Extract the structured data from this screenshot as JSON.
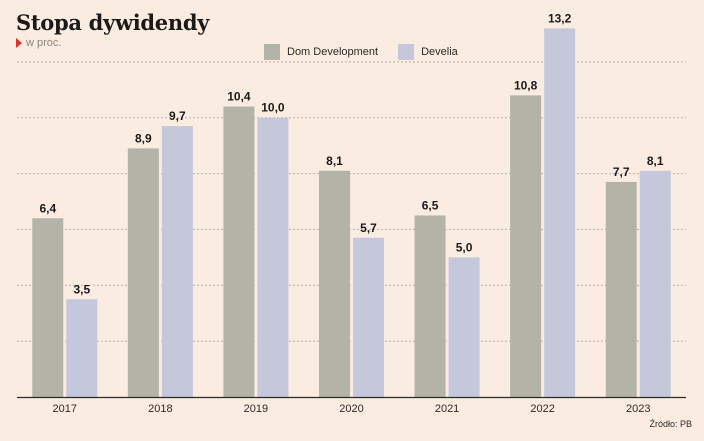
{
  "title": "Stopa dywidendy",
  "subtitle": "w proc.",
  "source": "Źródło: PB",
  "chart_data": {
    "type": "bar",
    "categories": [
      "2017",
      "2018",
      "2019",
      "2020",
      "2021",
      "2022",
      "2023"
    ],
    "series": [
      {
        "name": "Dom Development",
        "color": "#b3b3a7",
        "values": [
          6.4,
          8.9,
          10.4,
          8.1,
          6.5,
          10.8,
          7.7
        ]
      },
      {
        "name": "Develia",
        "color": "#c4c8da",
        "values": [
          3.5,
          9.7,
          10.0,
          5.7,
          5.0,
          13.2,
          8.1
        ]
      }
    ],
    "data_labels": {
      "Dom Development": [
        "6,4",
        "8,9",
        "10,4",
        "8,1",
        "6,5",
        "10,8",
        "7,7"
      ],
      "Develia": [
        "3,5",
        "9,7",
        "10,0",
        "5,7",
        "5,0",
        "13,2",
        "8,1"
      ]
    },
    "ylim": [
      0,
      14
    ],
    "grid": true,
    "legend_position": "top-center"
  }
}
